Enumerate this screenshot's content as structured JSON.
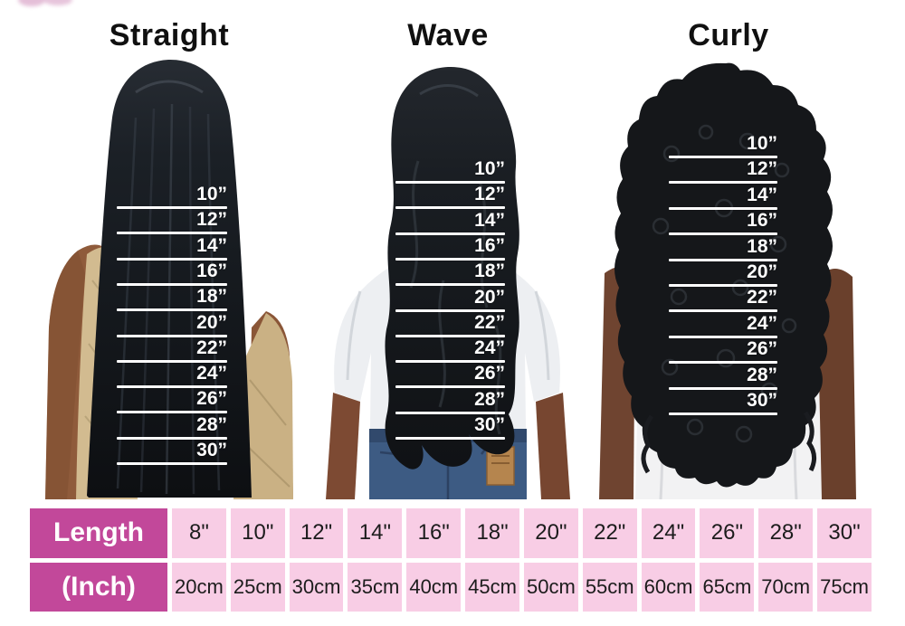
{
  "columns": [
    {
      "id": "straight",
      "title": "Straight"
    },
    {
      "id": "wave",
      "title": "Wave"
    },
    {
      "id": "curly",
      "title": "Curly"
    }
  ],
  "ruler_labels": [
    "10”",
    "12”",
    "14”",
    "16”",
    "18”",
    "20”",
    "22”",
    "24”",
    "26”",
    "28”",
    "30”"
  ],
  "table": {
    "header_top": "Length",
    "header_bottom": "(Inch)",
    "inches": [
      "8\"",
      "10\"",
      "12\"",
      "14\"",
      "16\"",
      "18\"",
      "20\"",
      "22\"",
      "24\"",
      "26\"",
      "28\"",
      "30\""
    ],
    "cm": [
      "20cm",
      "25cm",
      "30cm",
      "35cm",
      "40cm",
      "45cm",
      "50cm",
      "55cm",
      "60cm",
      "65cm",
      "70cm",
      "75cm"
    ]
  },
  "colors": {
    "table_header_bg": "#c2489a",
    "cell_pink": "#f8cde5",
    "ruler_white": "#ffffff",
    "table_text": "#1c1c1c",
    "watermark_pink": "#cf8ab8"
  },
  "chart_data": {
    "type": "table",
    "title": "Hair Length Chart (Straight / Wave / Curly)",
    "hair_styles": [
      "Straight",
      "Wave",
      "Curly"
    ],
    "ruler_marks_inches": [
      10,
      12,
      14,
      16,
      18,
      20,
      22,
      24,
      26,
      28,
      30
    ],
    "length_in": [
      8,
      10,
      12,
      14,
      16,
      18,
      20,
      22,
      24,
      26,
      28,
      30
    ],
    "length_cm": [
      20,
      25,
      30,
      35,
      40,
      45,
      50,
      55,
      60,
      65,
      70,
      75
    ]
  }
}
